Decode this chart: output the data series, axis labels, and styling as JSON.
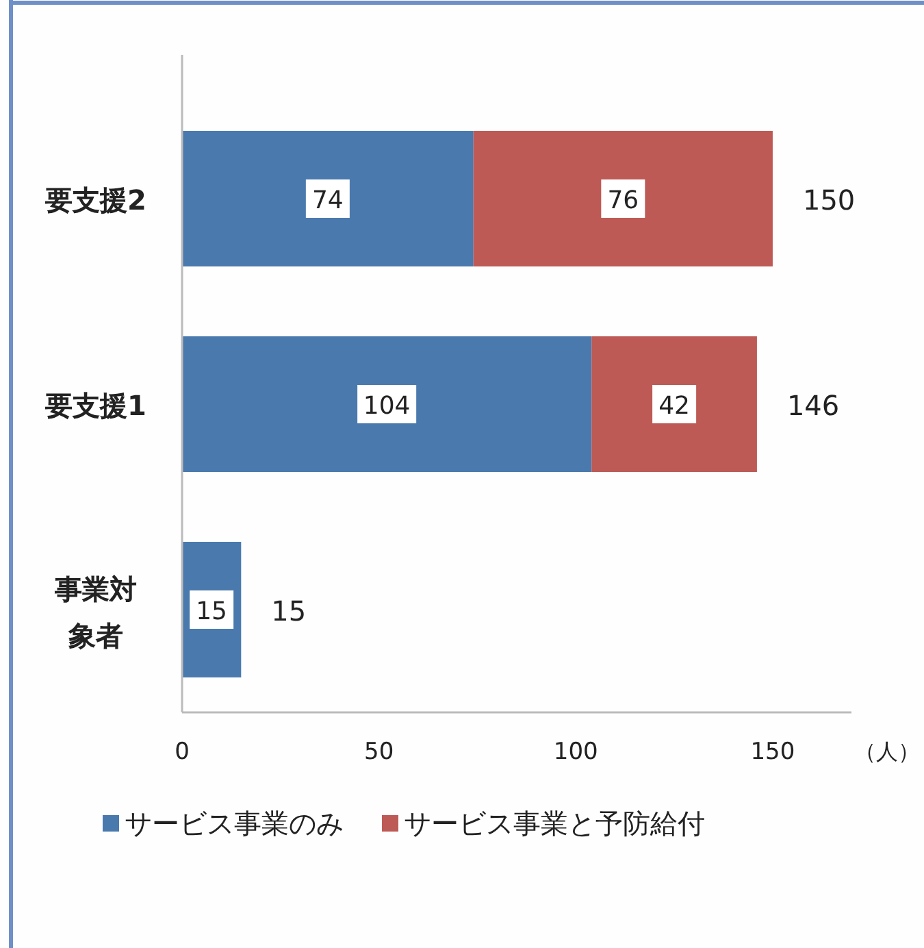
{
  "chart_data": {
    "type": "bar",
    "orientation": "horizontal",
    "stacked": true,
    "categories": [
      "要支援2",
      "要支援1",
      "事業対象者"
    ],
    "series": [
      {
        "name": "サービス事業のみ",
        "color": "#4a79ae",
        "values": [
          74,
          104,
          15
        ]
      },
      {
        "name": "サービス事業と予防給付",
        "color": "#bd5a55",
        "values": [
          76,
          42,
          null
        ]
      }
    ],
    "xlim": [
      0,
      170
    ],
    "xticks": [
      0,
      50,
      100,
      150
    ],
    "xlabel": "（人）",
    "data_labels": true,
    "totals": [
      "150",
      "146",
      "15"
    ],
    "legend": "bottom",
    "grid": false
  }
}
